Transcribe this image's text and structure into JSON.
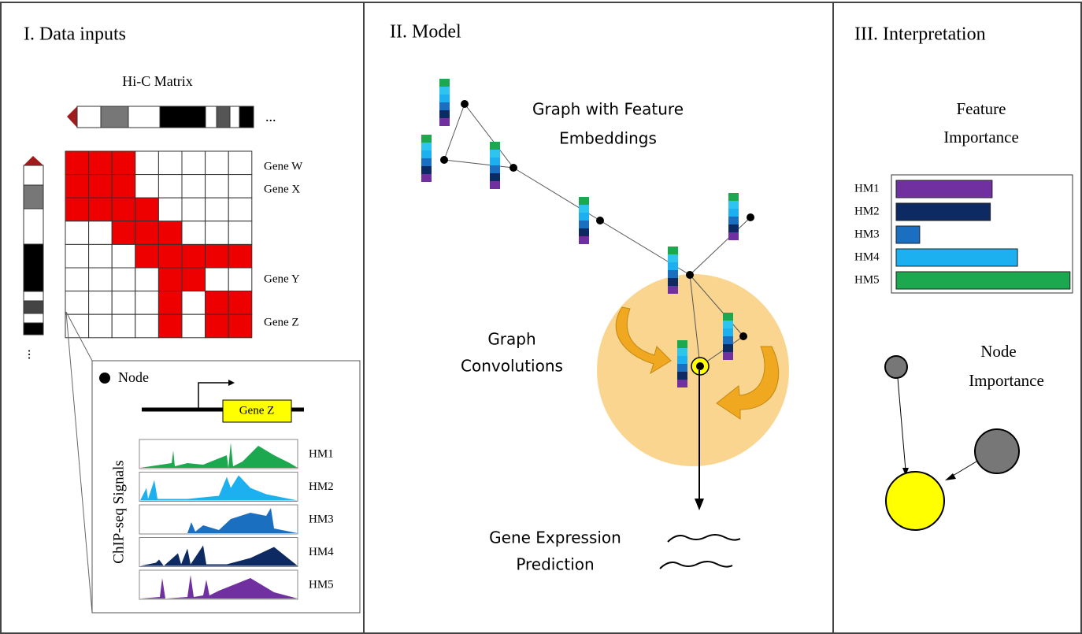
{
  "panels": [
    {
      "title": "I. Data inputs",
      "matrix_title": "Hi-C Matrix",
      "ellipsis_h": "...",
      "ellipsis_v": "...",
      "genes": [
        "Gene W",
        "Gene X",
        "Gene Y",
        "Gene Z"
      ],
      "inset": {
        "node_label": "Node",
        "gene": "Gene Z",
        "signals_title": "ChIP-seq Signals",
        "tracks": [
          "HM1",
          "HM2",
          "HM3",
          "HM4",
          "HM5"
        ]
      }
    },
    {
      "title": "II. Model",
      "graph_label": [
        "Graph with Feature",
        "Embeddings"
      ],
      "conv_label": [
        "Graph",
        "Convolutions"
      ],
      "output_label": [
        "Gene Expression",
        "Prediction"
      ]
    },
    {
      "title": "III. Interpretation",
      "feature_importance": {
        "title": [
          "Feature",
          "Importance"
        ],
        "categories": [
          "HM1",
          "HM2",
          "HM3",
          "HM4",
          "HM5"
        ],
        "values": [
          0.53,
          0.52,
          0.13,
          0.67,
          0.96
        ],
        "colors": [
          "#7030a0",
          "#0d2a63",
          "#1a6fc0",
          "#1cb0f0",
          "#1ca84e"
        ]
      },
      "node_importance": {
        "title": [
          "Node",
          "Importance"
        ]
      }
    }
  ]
}
